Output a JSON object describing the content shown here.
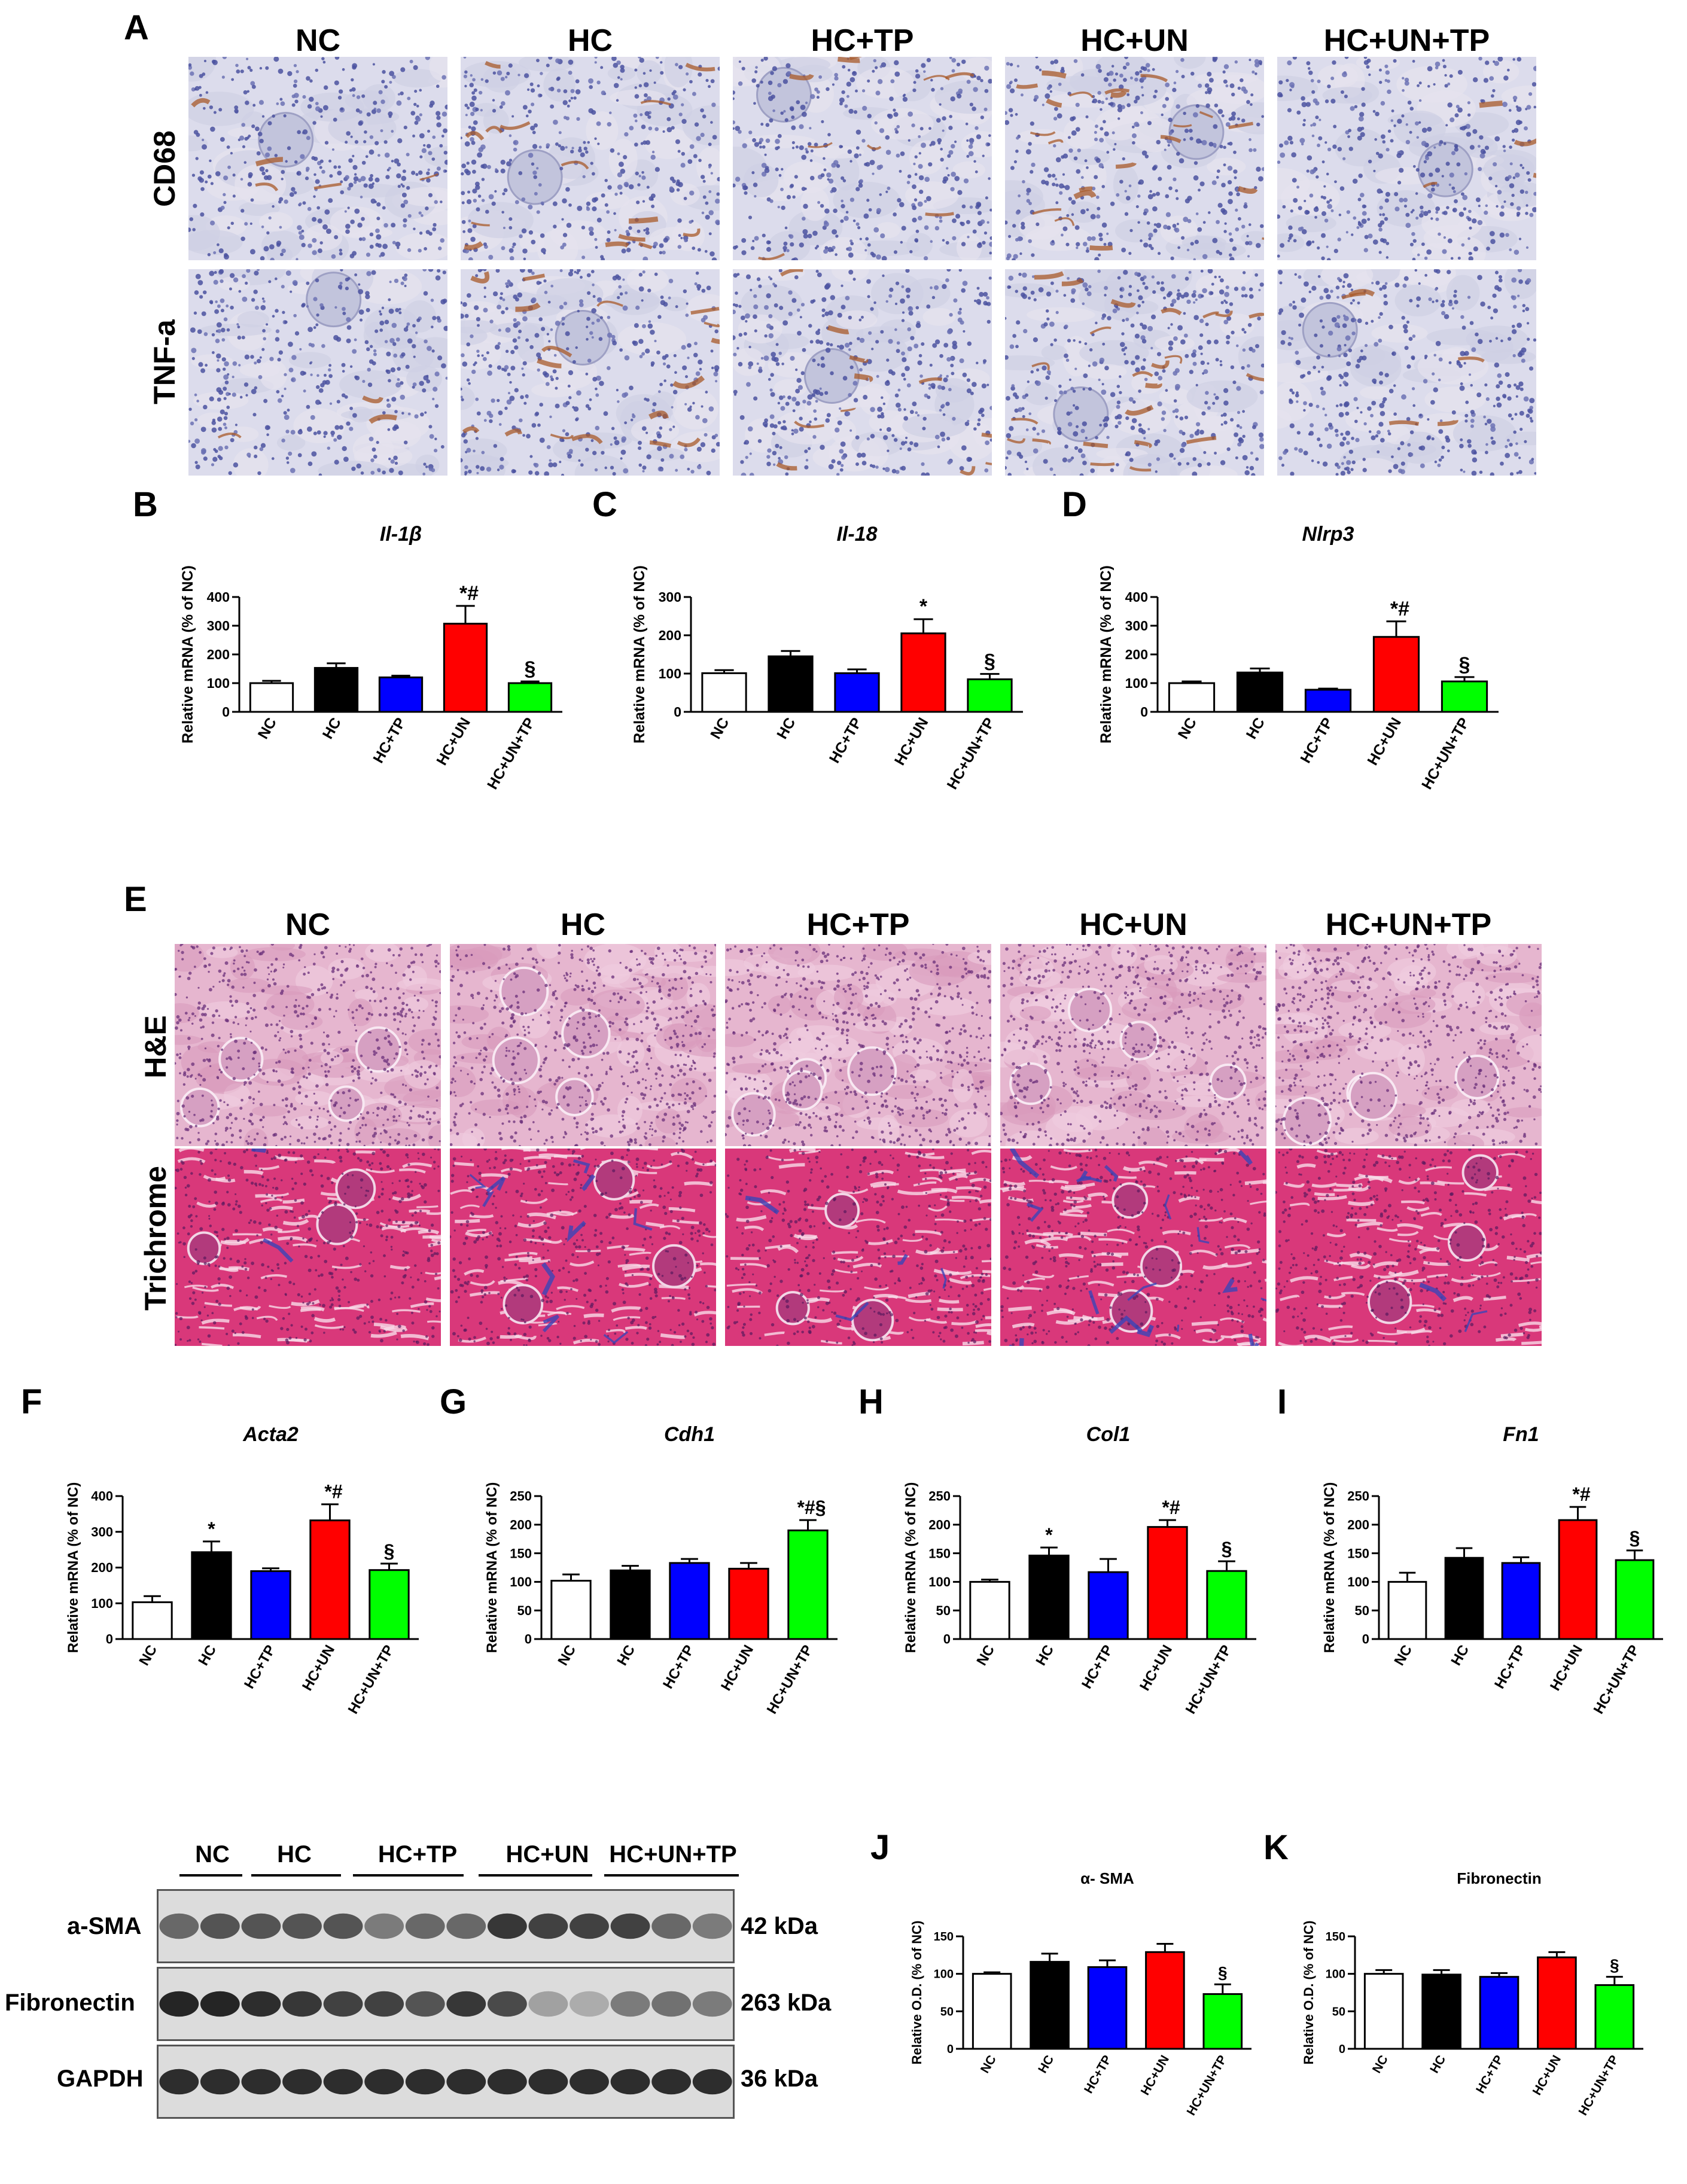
{
  "panels": {
    "A": "A",
    "B": "B",
    "C": "C",
    "D": "D",
    "E": "E",
    "F": "F",
    "G": "G",
    "H": "H",
    "I": "I",
    "J": "J",
    "K": "K"
  },
  "groups": [
    "NC",
    "HC",
    "HC+TP",
    "HC+UN",
    "HC+UN+TP"
  ],
  "histology_top": {
    "rows": [
      "CD68",
      "TNF-a"
    ]
  },
  "histology_bottom": {
    "rows": [
      "H&E",
      "Trichrome"
    ]
  },
  "western_blot": {
    "groups": [
      "NC",
      "HC",
      "HC+TP",
      "HC+UN",
      "HC+UN+TP"
    ],
    "bands": [
      {
        "label": "a-SMA",
        "kda": "42 kDa"
      },
      {
        "label": "Fibronectin",
        "kda": "263 kDa"
      },
      {
        "label": "GAPDH",
        "kda": "36 kDa"
      }
    ]
  },
  "colors": {
    "NC": "#ffffff",
    "HC": "#000000",
    "HC+TP": "#0000ff",
    "HC+UN": "#ff0000",
    "HC+UN+TP": "#00ff00"
  },
  "chart_data": [
    {
      "id": "B",
      "type": "bar",
      "title": "Il-1β",
      "title_italic": true,
      "ylabel": "Relative mRNA (% of NC)",
      "categories": [
        "NC",
        "HC",
        "HC+TP",
        "HC+UN",
        "HC+UN+TP"
      ],
      "values": [
        100,
        153,
        120,
        307,
        100
      ],
      "errors": [
        8,
        16,
        6,
        62,
        6
      ],
      "ylim": [
        0,
        400
      ],
      "yticks": [
        0,
        100,
        200,
        300,
        400
      ],
      "annotations": [
        "",
        "",
        "",
        "*#",
        "§"
      ]
    },
    {
      "id": "C",
      "type": "bar",
      "title": "Il-18",
      "title_italic": true,
      "ylabel": "Relative mRNA (% of NC)",
      "categories": [
        "NC",
        "HC",
        "HC+TP",
        "HC+UN",
        "HC+UN+TP"
      ],
      "values": [
        101,
        145,
        101,
        205,
        85
      ],
      "errors": [
        8,
        14,
        10,
        37,
        14
      ],
      "ylim": [
        0,
        300
      ],
      "yticks": [
        0,
        100,
        200,
        300
      ],
      "annotations": [
        "",
        "",
        "",
        "*",
        "§"
      ]
    },
    {
      "id": "D",
      "type": "bar",
      "title": "Nlrp3",
      "title_italic": true,
      "ylabel": "Relative mRNA (% of NC)",
      "categories": [
        "NC",
        "HC",
        "HC+TP",
        "HC+UN",
        "HC+UN+TP"
      ],
      "values": [
        100,
        137,
        77,
        261,
        106
      ],
      "errors": [
        6,
        14,
        4,
        54,
        15
      ],
      "ylim": [
        0,
        400
      ],
      "yticks": [
        0,
        100,
        200,
        300,
        400
      ],
      "annotations": [
        "",
        "",
        "",
        "*#",
        "§"
      ]
    },
    {
      "id": "F",
      "type": "bar",
      "title": "Acta2",
      "title_italic": true,
      "ylabel": "Relative mRNA (% of NC)",
      "categories": [
        "NC",
        "HC",
        "HC+TP",
        "HC+UN",
        "HC+UN+TP"
      ],
      "values": [
        103,
        243,
        190,
        332,
        193
      ],
      "errors": [
        17,
        30,
        8,
        45,
        18
      ],
      "ylim": [
        0,
        400
      ],
      "yticks": [
        0,
        100,
        200,
        300,
        400
      ],
      "annotations": [
        "",
        "*",
        "",
        "*#",
        "§"
      ]
    },
    {
      "id": "G",
      "type": "bar",
      "title": "Cdh1",
      "title_italic": true,
      "ylabel": "Relative mRNA (% of NC)",
      "categories": [
        "NC",
        "HC",
        "HC+TP",
        "HC+UN",
        "HC+UN+TP"
      ],
      "values": [
        102,
        120,
        133,
        123,
        190
      ],
      "errors": [
        11,
        8,
        7,
        10,
        18
      ],
      "ylim": [
        0,
        250
      ],
      "yticks": [
        0,
        50,
        100,
        150,
        200,
        250
      ],
      "annotations": [
        "",
        "",
        "",
        "",
        "*#§"
      ]
    },
    {
      "id": "H",
      "type": "bar",
      "title": "Col1",
      "title_italic": true,
      "ylabel": "Relative mRNA (% of NC)",
      "categories": [
        "NC",
        "HC",
        "HC+TP",
        "HC+UN",
        "HC+UN+TP"
      ],
      "values": [
        100,
        146,
        117,
        196,
        119
      ],
      "errors": [
        4,
        14,
        23,
        12,
        17
      ],
      "ylim": [
        0,
        250
      ],
      "yticks": [
        0,
        50,
        100,
        150,
        200,
        250
      ],
      "annotations": [
        "",
        "*",
        "",
        "*#",
        "§"
      ]
    },
    {
      "id": "I",
      "type": "bar",
      "title": "Fn1",
      "title_italic": true,
      "ylabel": "Relative mRNA (% of NC)",
      "categories": [
        "NC",
        "HC",
        "HC+TP",
        "HC+UN",
        "HC+UN+TP"
      ],
      "values": [
        100,
        142,
        133,
        208,
        138
      ],
      "errors": [
        16,
        17,
        10,
        23,
        17
      ],
      "ylim": [
        0,
        250
      ],
      "yticks": [
        0,
        50,
        100,
        150,
        200,
        250
      ],
      "annotations": [
        "",
        "",
        "",
        "*#",
        "§"
      ]
    },
    {
      "id": "J",
      "type": "bar",
      "title": "α- SMA",
      "title_italic": false,
      "ylabel": "Relative O.D. (% of NC)",
      "categories": [
        "NC",
        "HC",
        "HC+TP",
        "HC+UN",
        "HC+UN+TP"
      ],
      "values": [
        100,
        116,
        109,
        129,
        73
      ],
      "errors": [
        2,
        11,
        9,
        11,
        13
      ],
      "ylim": [
        0,
        150
      ],
      "yticks": [
        0,
        50,
        100,
        150
      ],
      "annotations": [
        "",
        "",
        "",
        "",
        "§"
      ]
    },
    {
      "id": "K",
      "type": "bar",
      "title": "Fibronectin",
      "title_italic": false,
      "ylabel": "Relative O.D. (% of NC)",
      "categories": [
        "NC",
        "HC",
        "HC+TP",
        "HC+UN",
        "HC+UN+TP"
      ],
      "values": [
        100,
        99,
        96,
        122,
        85
      ],
      "errors": [
        5,
        6,
        5,
        7,
        11
      ],
      "ylim": [
        0,
        150
      ],
      "yticks": [
        0,
        50,
        100,
        150
      ],
      "annotations": [
        "",
        "",
        "",
        "",
        "§"
      ]
    }
  ]
}
